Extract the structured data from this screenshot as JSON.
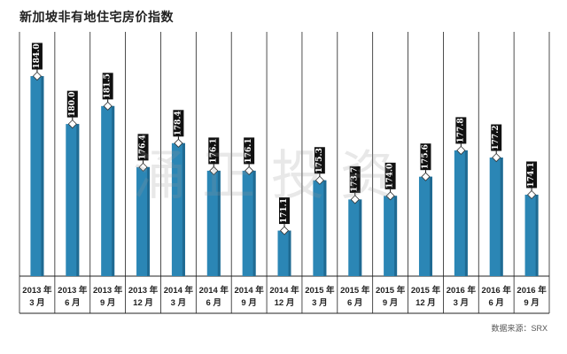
{
  "title": "新加坡非有地住宅房价指数",
  "source": "数据来源：SRX",
  "watermark": "涌正投资",
  "colors": {
    "bar": "#2b86b5",
    "bar_dark": "#1f6a92",
    "label_bg": "#111111",
    "grid": "#222222"
  },
  "chart_data": {
    "type": "bar",
    "title": "新加坡非有地住宅房价指数",
    "xlabel": "",
    "ylabel": "",
    "grid": true,
    "legend": "none",
    "categories": [
      [
        "2013 年",
        "3 月"
      ],
      [
        "2013 年",
        "6 月"
      ],
      [
        "2013 年",
        "9 月"
      ],
      [
        "2013 年",
        "12 月"
      ],
      [
        "2014 年",
        "3 月"
      ],
      [
        "2014 年",
        "6 月"
      ],
      [
        "2014 年",
        "9 月"
      ],
      [
        "2014 年",
        "12 月"
      ],
      [
        "2015 年",
        "3 月"
      ],
      [
        "2015 年",
        "6 月"
      ],
      [
        "2015 年",
        "9 月"
      ],
      [
        "2015 年",
        "12 月"
      ],
      [
        "2016 年",
        "3 月"
      ],
      [
        "2016 年",
        "6 月"
      ],
      [
        "2016 年",
        "9 月"
      ]
    ],
    "values": [
      184.0,
      180.0,
      181.5,
      176.4,
      178.4,
      176.1,
      176.1,
      171.1,
      175.3,
      173.7,
      174.0,
      175.6,
      177.8,
      177.2,
      174.1
    ],
    "labels": [
      "184.0",
      "180.0",
      "181.5",
      "176.4",
      "178.4",
      "176.1",
      "176.1",
      "171.1",
      "175.3",
      "173.7",
      "174.0",
      "175.6",
      "177.8",
      "177.2",
      "174.1"
    ]
  }
}
